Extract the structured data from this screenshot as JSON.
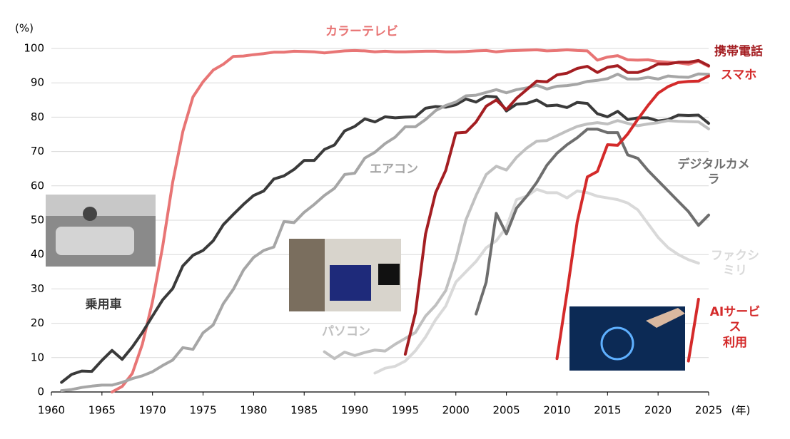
{
  "chart_data": {
    "type": "line",
    "y_unit": "(%)",
    "x_unit": "(年)",
    "xlim": [
      1960,
      2025
    ],
    "ylim": [
      0,
      100
    ],
    "xticks": [
      1960,
      1965,
      1970,
      1975,
      1980,
      1985,
      1990,
      1995,
      2000,
      2005,
      2010,
      2015,
      2020,
      2025
    ],
    "yticks": [
      0,
      10,
      20,
      30,
      40,
      50,
      60,
      70,
      80,
      90,
      100
    ],
    "grid": true,
    "series": [
      {
        "name": "カラーテレビ",
        "color": "#e87575",
        "x": [
          1966,
          1967,
          1968,
          1969,
          1970,
          1971,
          1972,
          1973,
          1974,
          1975,
          1976,
          1977,
          1978,
          1979,
          1980,
          1981,
          1982,
          1983,
          1984,
          1985,
          1986,
          1987,
          1988,
          1989,
          1990,
          1991,
          1992,
          1993,
          1994,
          1995,
          1996,
          1997,
          1998,
          1999,
          2000,
          2001,
          2002,
          2003,
          2004,
          2005,
          2006,
          2007,
          2008,
          2009,
          2010,
          2011,
          2012,
          2013,
          2014,
          2015,
          2016,
          2017,
          2018,
          2019,
          2020,
          2021,
          2022,
          2023,
          2024,
          2025
        ],
        "values": [
          0,
          1.6,
          5.4,
          13.9,
          26.3,
          42.3,
          61.1,
          75.8,
          85.9,
          90.3,
          93.7,
          95.4,
          97.7,
          97.8,
          98.2,
          98.5,
          98.9,
          98.9,
          99.2,
          99.1,
          99.0,
          98.7,
          99.0,
          99.3,
          99.4,
          99.3,
          99.0,
          99.2,
          99.0,
          99.0,
          99.1,
          99.2,
          99.2,
          99.0,
          99.0,
          99.1,
          99.3,
          99.4,
          99.0,
          99.3,
          99.4,
          99.5,
          99.6,
          99.3,
          99.4,
          99.6,
          99.4,
          99.3,
          96.6,
          97.5,
          97.9,
          96.7,
          96.6,
          96.7,
          96.2,
          96.0,
          95.8,
          95.4,
          96.3,
          94.8
        ]
      },
      {
        "name": "乗用車",
        "color": "#3a3a3a",
        "x": [
          1961,
          1962,
          1963,
          1964,
          1965,
          1966,
          1967,
          1968,
          1969,
          1970,
          1971,
          1972,
          1973,
          1974,
          1975,
          1976,
          1977,
          1978,
          1979,
          1980,
          1981,
          1982,
          1983,
          1984,
          1985,
          1986,
          1987,
          1988,
          1989,
          1990,
          1991,
          1992,
          1993,
          1994,
          1995,
          1996,
          1997,
          1998,
          1999,
          2000,
          2001,
          2002,
          2003,
          2004,
          2005,
          2006,
          2007,
          2008,
          2009,
          2010,
          2011,
          2012,
          2013,
          2014,
          2015,
          2016,
          2017,
          2018,
          2019,
          2020,
          2021,
          2022,
          2023,
          2024,
          2025
        ],
        "values": [
          2.8,
          5.1,
          6.1,
          6.0,
          9.2,
          12.1,
          9.5,
          13.1,
          17.3,
          22.1,
          26.8,
          30.1,
          36.7,
          39.8,
          41.2,
          44.0,
          48.7,
          51.7,
          54.6,
          57.2,
          58.5,
          62.0,
          62.9,
          64.8,
          67.4,
          67.4,
          70.6,
          71.9,
          76.0,
          77.3,
          79.5,
          78.6,
          80.1,
          79.8,
          80.0,
          80.1,
          82.6,
          83.1,
          82.9,
          83.6,
          85.3,
          84.4,
          86.1,
          85.9,
          81.8,
          83.8,
          84.0,
          85.0,
          83.3,
          83.5,
          82.8,
          84.3,
          84.0,
          81.0,
          80.1,
          81.7,
          79.3,
          79.8,
          79.8,
          78.9,
          79.3,
          80.6,
          80.5,
          80.6,
          78.2
        ]
      },
      {
        "name": "エアコン",
        "color": "#a6a6a6",
        "x": [
          1961,
          1962,
          1963,
          1964,
          1965,
          1966,
          1967,
          1968,
          1969,
          1970,
          1971,
          1972,
          1973,
          1974,
          1975,
          1976,
          1977,
          1978,
          1979,
          1980,
          1981,
          1982,
          1983,
          1984,
          1985,
          1986,
          1987,
          1988,
          1989,
          1990,
          1991,
          1992,
          1993,
          1994,
          1995,
          1996,
          1997,
          1998,
          1999,
          2000,
          2001,
          2002,
          2003,
          2004,
          2005,
          2006,
          2007,
          2008,
          2009,
          2010,
          2011,
          2012,
          2013,
          2014,
          2015,
          2016,
          2017,
          2018,
          2019,
          2020,
          2021,
          2022,
          2023,
          2024,
          2025
        ],
        "values": [
          0.4,
          0.7,
          1.3,
          1.7,
          2.0,
          2.0,
          2.8,
          3.9,
          4.7,
          5.9,
          7.7,
          9.3,
          12.9,
          12.4,
          17.2,
          19.5,
          25.7,
          29.9,
          35.5,
          39.2,
          41.2,
          42.2,
          49.6,
          49.3,
          52.3,
          54.6,
          57.2,
          59.3,
          63.3,
          63.7,
          68.1,
          69.8,
          72.3,
          74.2,
          77.2,
          77.2,
          79.3,
          81.9,
          83.4,
          84.4,
          86.2,
          86.4,
          87.2,
          88.0,
          87.1,
          88.0,
          88.5,
          89.3,
          88.2,
          89.0,
          89.2,
          89.6,
          90.4,
          90.7,
          91.2,
          92.5,
          91.1,
          91.1,
          91.6,
          91.1,
          92.0,
          91.7,
          91.6,
          92.6,
          92.5
        ]
      },
      {
        "name": "パソコン",
        "color": "#c0c0c0",
        "x": [
          1987,
          1988,
          1989,
          1990,
          1991,
          1992,
          1993,
          1994,
          1995,
          1996,
          1997,
          1998,
          1999,
          2000,
          2001,
          2002,
          2003,
          2004,
          2005,
          2006,
          2007,
          2008,
          2009,
          2010,
          2011,
          2012,
          2013,
          2014,
          2015,
          2016,
          2017,
          2018,
          2019,
          2020,
          2021,
          2022,
          2023,
          2024,
          2025
        ],
        "values": [
          11.7,
          9.7,
          11.6,
          10.6,
          11.5,
          12.2,
          11.9,
          13.9,
          15.6,
          17.3,
          22.1,
          25.2,
          29.5,
          38.6,
          50.1,
          57.2,
          63.3,
          65.7,
          64.6,
          68.3,
          71.0,
          73.0,
          73.2,
          74.6,
          76.0,
          77.3,
          78.0,
          78.4,
          78.0,
          79.0,
          78.2,
          77.5,
          78.0,
          78.4,
          79.0,
          78.8,
          78.7,
          78.6,
          76.6
        ]
      },
      {
        "name": "ファクシミリ",
        "color": "#d9d9d9",
        "x": [
          1992,
          1993,
          1994,
          1995,
          1996,
          1997,
          1998,
          1999,
          2000,
          2001,
          2002,
          2003,
          2004,
          2005,
          2006,
          2007,
          2008,
          2009,
          2010,
          2011,
          2012,
          2013,
          2014,
          2015,
          2016,
          2017,
          2018,
          2019,
          2020,
          2021,
          2022,
          2023,
          2024
        ],
        "values": [
          5.5,
          6.9,
          7.5,
          9.0,
          12.0,
          16.0,
          21.0,
          25.0,
          32.0,
          35.0,
          38.0,
          42.0,
          44.0,
          48.0,
          56.0,
          57.0,
          59.0,
          58.0,
          58.0,
          56.5,
          58.5,
          58.0,
          57.0,
          56.5,
          56.0,
          55.0,
          53.0,
          49.0,
          45.0,
          42.0,
          40.0,
          38.5,
          37.5
        ]
      },
      {
        "name": "デジタルカメラ",
        "color": "#6e6e6e",
        "x": [
          2002,
          2003,
          2004,
          2005,
          2006,
          2007,
          2008,
          2009,
          2010,
          2011,
          2012,
          2013,
          2014,
          2015,
          2016,
          2017,
          2018,
          2019,
          2020,
          2021,
          2022,
          2023,
          2024,
          2025
        ],
        "values": [
          22.7,
          32.0,
          52.0,
          46.0,
          53.5,
          57.0,
          61.0,
          66.0,
          69.5,
          72.0,
          74.0,
          76.5,
          76.5,
          75.5,
          75.5,
          69.0,
          68.0,
          64.5,
          61.5,
          58.5,
          55.5,
          52.5,
          48.5,
          51.5
        ]
      },
      {
        "name": "携帯電話",
        "color": "#a41e22",
        "x": [
          1995,
          1996,
          1997,
          1998,
          1999,
          2000,
          2001,
          2002,
          2003,
          2004,
          2005,
          2006,
          2007,
          2008,
          2009,
          2010,
          2011,
          2012,
          2013,
          2014,
          2015,
          2016,
          2017,
          2018,
          2019,
          2020,
          2021,
          2022,
          2023,
          2024,
          2025
        ],
        "values": [
          11,
          23,
          46,
          58,
          64.5,
          75.4,
          75.6,
          78.6,
          83.2,
          85.0,
          82.2,
          85.5,
          88.0,
          90.5,
          90.3,
          92.3,
          92.8,
          94.2,
          94.8,
          93.0,
          94.5,
          95.0,
          93.0,
          93.0,
          94.0,
          95.5,
          95.5,
          96.0,
          96.0,
          96.5,
          95.0
        ]
      },
      {
        "name": "スマホ",
        "color": "#d42a2a",
        "x": [
          2010,
          2011,
          2012,
          2013,
          2014,
          2015,
          2016,
          2017,
          2018,
          2019,
          2020,
          2021,
          2022,
          2023,
          2024,
          2025
        ],
        "values": [
          9.7,
          29,
          49.5,
          62.6,
          64.2,
          72.0,
          71.8,
          75.1,
          79.4,
          83.4,
          87.0,
          88.9,
          90.1,
          90.4,
          90.5,
          92.0
        ]
      },
      {
        "name": "AIサービス\n利用",
        "color": "#d42a2a",
        "x": [
          2023,
          2024
        ],
        "values": [
          9,
          27
        ]
      }
    ]
  }
}
